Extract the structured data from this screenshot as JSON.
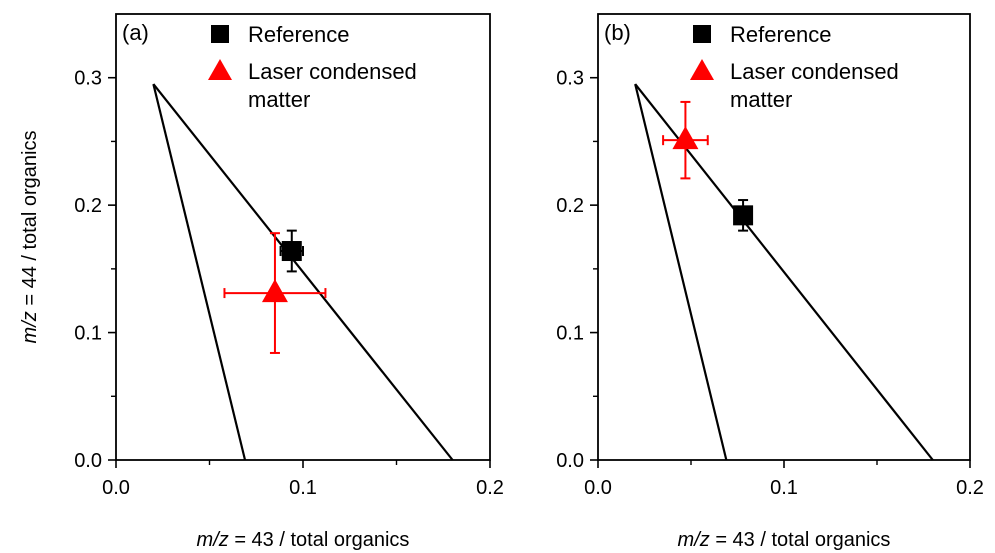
{
  "chart_data": [
    {
      "type": "scatter",
      "panel_label": "(a)",
      "xlabel_italic": "m/z",
      "xlabel_rest": " = 43 / total organics",
      "ylabel_italic": "m/z",
      "ylabel_rest": " = 44 / total organics",
      "xlim": [
        0.0,
        0.2
      ],
      "ylim": [
        0.0,
        0.35
      ],
      "xticks": [
        "0.0",
        "0.1",
        "0.2"
      ],
      "xtick_values": [
        0.0,
        0.1,
        0.2
      ],
      "yticks": [
        "0.0",
        "0.1",
        "0.2",
        "0.3"
      ],
      "ytick_values": [
        0.0,
        0.1,
        0.2,
        0.3
      ],
      "triangle": [
        [
          0.02,
          0.295
        ],
        [
          0.069,
          0.0
        ],
        [
          0.18,
          0.0
        ]
      ],
      "series": [
        {
          "name": "Reference",
          "marker": "square",
          "color": "#000000",
          "x": 0.094,
          "y": 0.164,
          "xerr": 0.006,
          "yerr": 0.016
        },
        {
          "name": "Laser condensed matter",
          "marker": "triangle",
          "color": "#ff0000",
          "x": 0.085,
          "y": 0.131,
          "xerr": 0.027,
          "yerr": 0.047
        }
      ],
      "legend": [
        "Reference",
        "Laser condensed",
        "matter"
      ],
      "legend_position": "top-right"
    },
    {
      "type": "scatter",
      "panel_label": "(b)",
      "xlabel_italic": "m/z",
      "xlabel_rest": " = 43 / total organics",
      "xlim": [
        0.0,
        0.2
      ],
      "ylim": [
        0.0,
        0.35
      ],
      "xticks": [
        "0.0",
        "0.1",
        "0.2"
      ],
      "xtick_values": [
        0.0,
        0.1,
        0.2
      ],
      "yticks": [
        "0.0",
        "0.1",
        "0.2",
        "0.3"
      ],
      "ytick_values": [
        0.0,
        0.1,
        0.2,
        0.3
      ],
      "triangle": [
        [
          0.02,
          0.295
        ],
        [
          0.069,
          0.0
        ],
        [
          0.18,
          0.0
        ]
      ],
      "series": [
        {
          "name": "Reference",
          "marker": "square",
          "color": "#000000",
          "x": 0.078,
          "y": 0.192,
          "xerr": 0.004,
          "yerr": 0.012
        },
        {
          "name": "Laser condensed matter",
          "marker": "triangle",
          "color": "#ff0000",
          "x": 0.047,
          "y": 0.251,
          "xerr": 0.012,
          "yerr": 0.03
        }
      ],
      "legend": [
        "Reference",
        "Laser condensed",
        "matter"
      ],
      "legend_position": "top-right"
    }
  ]
}
